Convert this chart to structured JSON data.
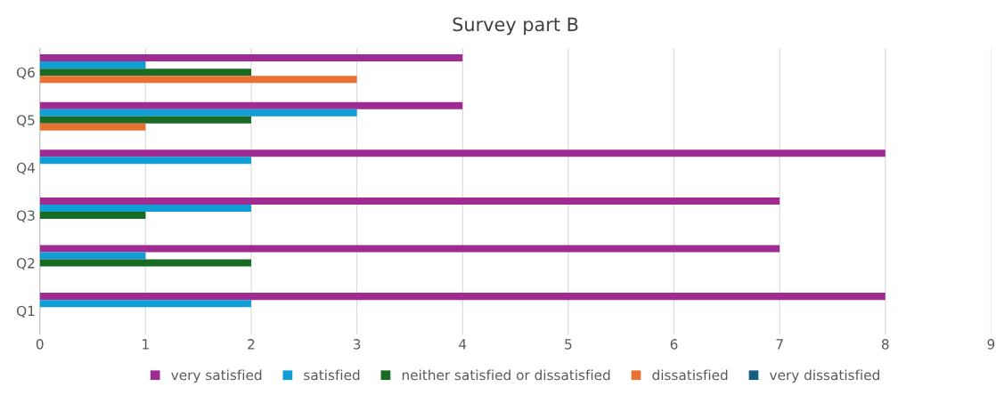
{
  "chart_data": {
    "type": "bar",
    "orientation": "horizontal",
    "title": "Survey part B",
    "categories": [
      "Q6",
      "Q5",
      "Q4",
      "Q3",
      "Q2",
      "Q1"
    ],
    "series": [
      {
        "name": "very satisfied",
        "color": "#a02b93",
        "values": [
          4,
          4,
          8,
          7,
          7,
          8
        ]
      },
      {
        "name": "satisfied",
        "color": "#0f9ed5",
        "values": [
          1,
          3,
          2,
          2,
          1,
          2
        ]
      },
      {
        "name": "neither satisfied or dissatisfied",
        "color": "#196b24",
        "values": [
          2,
          2,
          0,
          1,
          2,
          0
        ]
      },
      {
        "name": "dissatisfied",
        "color": "#e97132",
        "values": [
          3,
          1,
          0,
          0,
          0,
          0
        ]
      },
      {
        "name": "very dissatisfied",
        "color": "#156082",
        "values": [
          0,
          0,
          0,
          0,
          0,
          0
        ]
      }
    ],
    "xlim": [
      0,
      9
    ],
    "xticks": [
      0,
      1,
      2,
      3,
      4,
      5,
      6,
      7,
      8,
      9
    ],
    "grid": "x",
    "legend": "bottom"
  }
}
